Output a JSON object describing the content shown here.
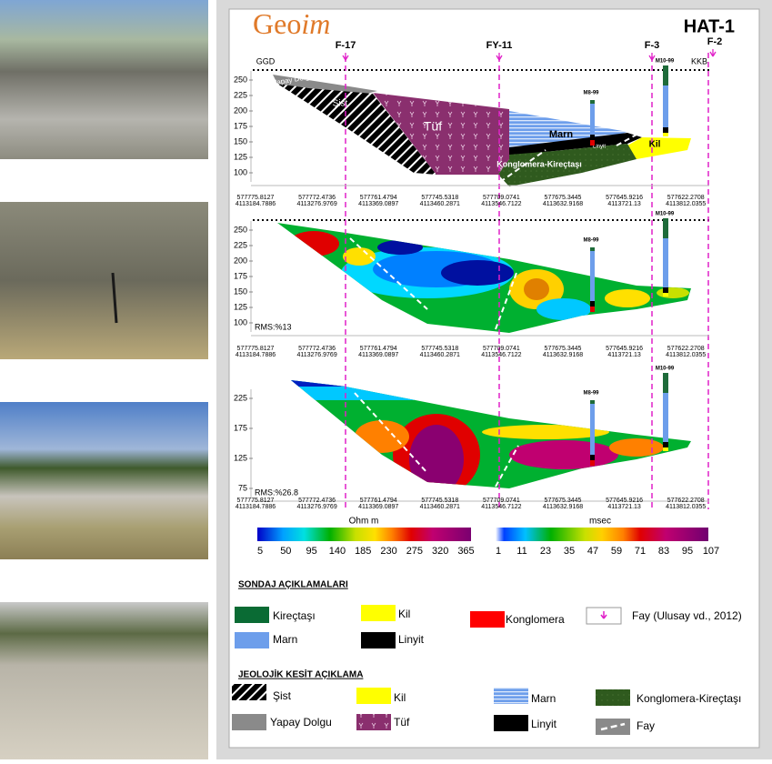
{
  "header": {
    "logo": [
      "Geo",
      "im"
    ],
    "title": "HAT-1"
  },
  "wells": [
    "F-17",
    "FY-11",
    "F-3",
    "F-2"
  ],
  "section_ends": [
    "GGD",
    "KKB"
  ],
  "boreholes": [
    "M8-99",
    "M10-99"
  ],
  "geology_labels": [
    "Yapay Dolgu",
    "Şist",
    "Tüf",
    "Marn",
    "Linyit",
    "Kil",
    "Konglomera-Kireçtaşı"
  ],
  "coordinates": [
    [
      577775.8127,
      4113184.7886
    ],
    [
      577772.4736,
      4113276.9769
    ],
    [
      577761.4794,
      4113369.0897
    ],
    [
      577745.5318,
      4113460.2871
    ],
    [
      577709.0741,
      4113546.7122
    ],
    [
      577675.3445,
      4113632.9168
    ],
    [
      577645.9216,
      4113721.13
    ],
    [
      577622.2708,
      4113812.0355
    ]
  ],
  "panels": [
    {
      "yticks": [
        250,
        225,
        200,
        175,
        150,
        125,
        100
      ]
    },
    {
      "yticks": [
        250,
        225,
        200,
        175,
        150,
        125,
        100
      ],
      "rms": "RMS:%13"
    },
    {
      "yticks": [
        225,
        175,
        125,
        75
      ],
      "rms": "RMS:%26.8"
    }
  ],
  "scales": [
    {
      "unit": "Ohm m",
      "ticks": [
        5,
        50,
        95,
        140,
        185,
        230,
        275,
        320,
        365
      ]
    },
    {
      "unit": "msec",
      "ticks": [
        1,
        11,
        23,
        35,
        47,
        59,
        71,
        83,
        95,
        107
      ]
    }
  ],
  "legends": [
    {
      "title": "SONDAJ AÇIKLAMALARI",
      "items": [
        "Kireçtaşı",
        "Kil",
        "Konglomera",
        "Fay (Ulusay vd., 2012)",
        "Marn",
        "Linyit"
      ]
    },
    {
      "title": "JEOLOJİK KESİT AÇIKLAMA",
      "items": [
        "Şist",
        "Kil",
        "Marn",
        "Konglomera-Kireçtaşı",
        "Yapay Dolgu",
        "Tüf",
        "Linyit",
        "Fay"
      ]
    }
  ]
}
